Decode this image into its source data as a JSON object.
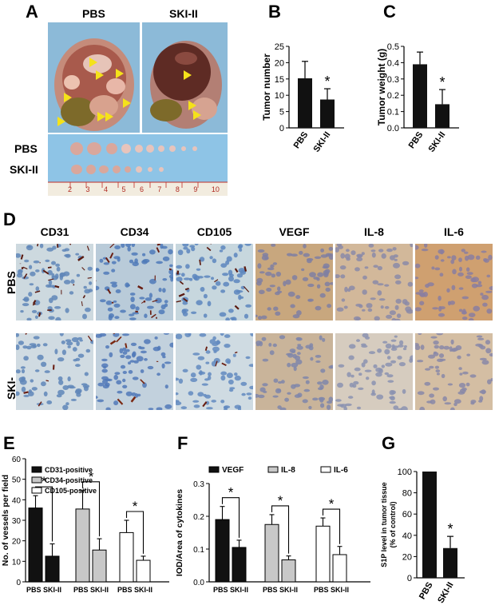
{
  "panels": {
    "a": "A",
    "b": "B",
    "c": "C",
    "d": "D",
    "e": "E",
    "f": "F",
    "g": "G"
  },
  "panel_a": {
    "col_labels": [
      "PBS",
      "SKI-II"
    ],
    "row_labels": [
      "PBS",
      "SKI-II"
    ],
    "ruler_numbers": [
      "2",
      "3",
      "4",
      "5",
      "6",
      "7",
      "8",
      "9",
      "10"
    ]
  },
  "panel_d": {
    "columns": [
      "CD31",
      "CD34",
      "CD105",
      "VEGF",
      "IL-8",
      "IL-6"
    ],
    "rows": [
      "PBS",
      "SKI-II"
    ]
  },
  "colors": {
    "black": "#111111",
    "gray": "#c8c8c8",
    "white": "#ffffff",
    "arrow": "#f5e21a"
  },
  "chart_data": [
    {
      "id": "B",
      "type": "bar",
      "categories": [
        "PBS",
        "SKI-II"
      ],
      "values": [
        15.2,
        8.7
      ],
      "errors": [
        5.2,
        3.3
      ],
      "ylabel": "Tumor number",
      "ylim": [
        0,
        25
      ],
      "yticks": [
        "0",
        "5",
        "10",
        "15",
        "20",
        "25"
      ],
      "significance": "*"
    },
    {
      "id": "C",
      "type": "bar",
      "categories": [
        "PBS",
        "SKI-II"
      ],
      "values": [
        0.39,
        0.145
      ],
      "errors": [
        0.075,
        0.09
      ],
      "ylabel": "Tumor weight (g)",
      "ylim": [
        0,
        0.5
      ],
      "yticks": [
        "0.0",
        "0.1",
        "0.2",
        "0.3",
        "0.4",
        "0.5"
      ],
      "significance": "*"
    },
    {
      "id": "E",
      "type": "bar",
      "ylabel": "No. of vessels per field",
      "ylim": [
        0,
        60
      ],
      "yticks": [
        "0",
        "10",
        "20",
        "30",
        "40",
        "50",
        "60"
      ],
      "group_labels": [
        "PBS SKI-II",
        "PBS SKI-II",
        "PBS SKI-II"
      ],
      "series": [
        {
          "name": "CD31-positive",
          "values": [
            36,
            12.5
          ],
          "errors": [
            6,
            6
          ]
        },
        {
          "name": "CD34-positive",
          "values": [
            35.5,
            15.5
          ],
          "errors": [
            9,
            5.5
          ]
        },
        {
          "name": "CD105-positive",
          "values": [
            24,
            10.5
          ],
          "errors": [
            6,
            2
          ]
        }
      ],
      "significance": "*"
    },
    {
      "id": "F",
      "type": "bar",
      "ylabel": "IOD/Area of cytokines",
      "ylim": [
        0,
        0.3
      ],
      "yticks": [
        "0.0",
        "0.1",
        "0.2",
        "0.3"
      ],
      "group_labels": [
        "PBS SKI-II",
        "PBS SKI-II",
        "PBS SKI-II"
      ],
      "series": [
        {
          "name": "VEGF",
          "values": [
            0.19,
            0.105
          ],
          "errors": [
            0.04,
            0.022
          ]
        },
        {
          "name": "IL-8",
          "values": [
            0.175,
            0.067
          ],
          "errors": [
            0.03,
            0.012
          ]
        },
        {
          "name": "IL-6",
          "values": [
            0.17,
            0.083
          ],
          "errors": [
            0.025,
            0.025
          ]
        }
      ],
      "significance": "*"
    },
    {
      "id": "G",
      "type": "bar",
      "categories": [
        "PBS",
        "SKI-II"
      ],
      "values": [
        100,
        28
      ],
      "errors": [
        0,
        11
      ],
      "ylabel_lines": [
        "S1P level in tumor tissue",
        "(% of control)"
      ],
      "ylim": [
        0,
        100
      ],
      "yticks": [
        "0",
        "20",
        "40",
        "60",
        "80",
        "100"
      ],
      "significance": "*"
    }
  ]
}
